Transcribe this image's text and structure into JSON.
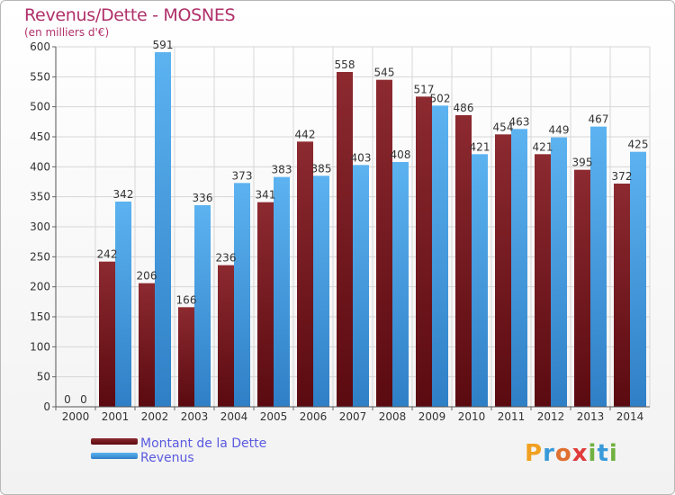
{
  "title": "Revenus/Dette - MOSNES",
  "subtitle": "(en milliers d'€)",
  "logo": {
    "letters": [
      "P",
      "r",
      "o",
      "x",
      "i",
      "t",
      "i"
    ],
    "colors": [
      "#f0a020",
      "#3a9ad9",
      "#e07030",
      "#e03a3a",
      "#70b040",
      "#3a9ad9",
      "#70b040"
    ]
  },
  "chart_data": {
    "type": "bar",
    "categories": [
      "2000",
      "2001",
      "2002",
      "2003",
      "2004",
      "2005",
      "2006",
      "2007",
      "2008",
      "2009",
      "2010",
      "2011",
      "2012",
      "2013",
      "2014"
    ],
    "series": [
      {
        "name": "Montant de la Dette",
        "color": "#7a1c22",
        "values": [
          0,
          242,
          206,
          166,
          236,
          341,
          442,
          558,
          545,
          517,
          486,
          454,
          421,
          395,
          372
        ],
        "labels": [
          "0",
          "242",
          "206",
          "166",
          "236",
          "341",
          "442",
          "558",
          "545",
          "517",
          "486",
          "454",
          "421",
          "395",
          "372"
        ]
      },
      {
        "name": "Revenus",
        "color": "#49a3e5",
        "values": [
          0,
          342,
          591,
          336,
          373,
          383,
          385,
          403,
          408,
          502,
          421,
          463,
          449,
          467,
          425
        ],
        "labels": [
          "0",
          "342",
          "591",
          "336",
          "373",
          "383",
          "385",
          "403",
          "408",
          "502",
          "421",
          "463",
          "449",
          "467",
          "425"
        ]
      }
    ],
    "yticks": [
      "0",
      "50",
      "100",
      "150",
      "200",
      "250",
      "300",
      "350",
      "400",
      "450",
      "500",
      "550",
      "600"
    ],
    "ylim": [
      0,
      600
    ],
    "grid": true,
    "legend": "bottom-left"
  }
}
